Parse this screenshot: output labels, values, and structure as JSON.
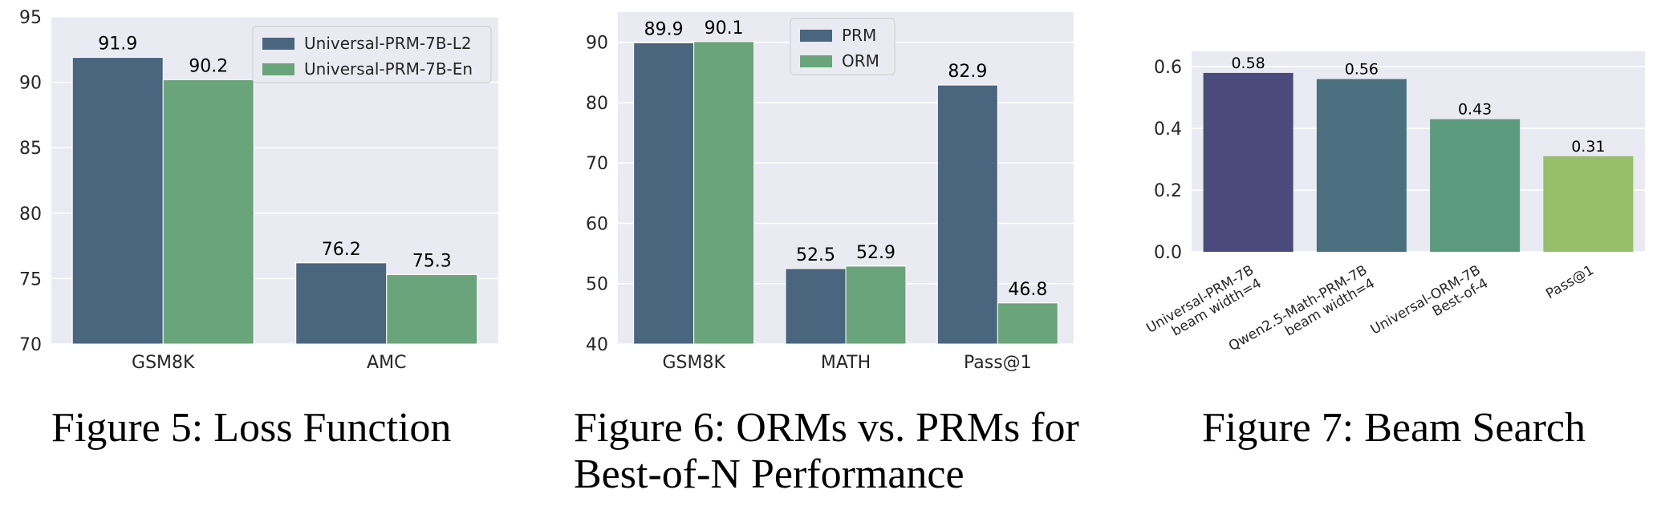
{
  "captions": {
    "fig5": "Figure 5: Loss Function",
    "fig6": "Figure 6: ORMs vs. PRMs for\nBest-of-N Performance",
    "fig7": "Figure 7: Beam Search"
  },
  "chart_data": [
    {
      "type": "bar",
      "categories": [
        "GSM8K",
        "AMC"
      ],
      "series": [
        {
          "name": "Universal-PRM-7B-L2",
          "values": [
            91.9,
            76.2
          ],
          "color": "#4a657e"
        },
        {
          "name": "Universal-PRM-7B-En",
          "values": [
            90.2,
            75.3
          ],
          "color": "#6aa47a"
        }
      ],
      "ylim": [
        70,
        95
      ],
      "yticks": [
        70,
        75,
        80,
        85,
        90,
        95
      ],
      "legend": "top-right",
      "grid": true
    },
    {
      "type": "bar",
      "categories": [
        "GSM8K",
        "MATH",
        "Pass@1"
      ],
      "series": [
        {
          "name": "PRM",
          "values": [
            89.9,
            52.5,
            82.9
          ],
          "color": "#4a657e"
        },
        {
          "name": "ORM",
          "values": [
            90.1,
            52.9,
            46.8
          ],
          "color": "#6aa47a"
        }
      ],
      "ylim": [
        40,
        95
      ],
      "yticks": [
        40,
        50,
        60,
        70,
        80,
        90
      ],
      "legend": "top-center",
      "grid": true
    },
    {
      "type": "bar",
      "categories": [
        "Universal-PRM-7B\nbeam width=4",
        "Qwen2.5-Math-PRM-7B\nbeam width=4",
        "Universal-ORM-7B\nBest-of-4",
        "Pass@1"
      ],
      "values": [
        0.58,
        0.56,
        0.43,
        0.31
      ],
      "colors": [
        "#4a4a7c",
        "#4a707f",
        "#5c9a7d",
        "#96be6b"
      ],
      "ylim": [
        0,
        0.65
      ],
      "yticks": [
        "0.0",
        "0.2",
        "0.4",
        "0.6"
      ],
      "grid": true
    }
  ]
}
